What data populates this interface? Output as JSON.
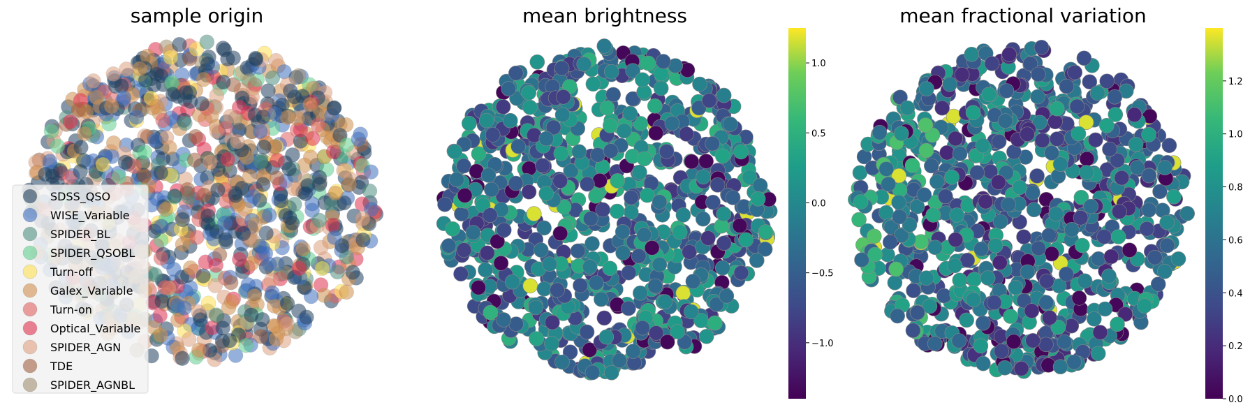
{
  "chart_data": [
    {
      "type": "scatter",
      "title": "sample origin",
      "legend_position": "lower-left",
      "series": [
        {
          "name": "SDSS_QSO",
          "color": "#1f3f5f"
        },
        {
          "name": "WISE_Variable",
          "color": "#3f6fbf"
        },
        {
          "name": "SPIDER_BL",
          "color": "#4f8f7f"
        },
        {
          "name": "SPIDER_QSOBL",
          "color": "#5fcf8f"
        },
        {
          "name": "Turn-off",
          "color": "#ffe050"
        },
        {
          "name": "Galex_Variable",
          "color": "#d0904f"
        },
        {
          "name": "Turn-on",
          "color": "#e06060"
        },
        {
          "name": "Optical_Variable",
          "color": "#e0304f"
        },
        {
          "name": "SPIDER_AGN",
          "color": "#dfa07f"
        },
        {
          "name": "TDE",
          "color": "#a0603f"
        },
        {
          "name": "SPIDER_AGNBL",
          "color": "#a09070"
        }
      ]
    },
    {
      "type": "scatter",
      "title": "mean brightness",
      "colormap": "viridis",
      "colorbar": {
        "min": -1.4,
        "max": 1.25,
        "ticks": [
          "1.0",
          "0.5",
          "0.0",
          "−0.5",
          "−1.0"
        ],
        "tick_values": [
          1.0,
          0.5,
          0.0,
          -0.5,
          -1.0
        ]
      }
    },
    {
      "type": "scatter",
      "title": "mean fractional variation",
      "colormap": "viridis",
      "colorbar": {
        "min": 0.0,
        "max": 1.4,
        "ticks": [
          "1.2",
          "1.0",
          "0.8",
          "0.6",
          "0.4",
          "0.2",
          "0.0"
        ],
        "tick_values": [
          1.2,
          1.0,
          0.8,
          0.6,
          0.4,
          0.2,
          0.0
        ]
      }
    }
  ]
}
